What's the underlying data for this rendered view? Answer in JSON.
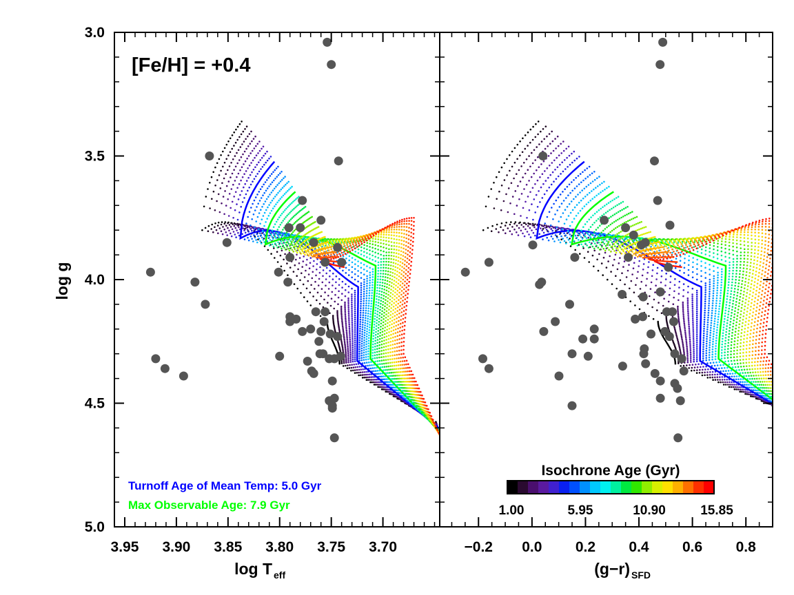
{
  "chart_data": {
    "type": "scatter",
    "title": "",
    "annotation": "[Fe/H] = +0.4",
    "y_axis": {
      "label": "log g",
      "ylim": [
        3.0,
        5.0
      ],
      "inverted": true,
      "ticks": [
        3.0,
        3.5,
        4.0,
        4.5,
        5.0
      ],
      "tick_labels": [
        "3.0",
        "3.5",
        "4.0",
        "4.5",
        "5.0"
      ]
    },
    "left_panel": {
      "xlabel_main": "log T",
      "xlabel_sub": "eff",
      "xlim": [
        3.96,
        3.645
      ],
      "ticks": [
        3.95,
        3.9,
        3.85,
        3.8,
        3.75,
        3.7
      ],
      "tick_labels": [
        "3.95",
        "3.90",
        "3.85",
        "3.80",
        "3.75",
        "3.70"
      ],
      "stars": [
        [
          3.754,
          3.04
        ],
        [
          3.75,
          3.13
        ],
        [
          3.868,
          3.5
        ],
        [
          3.743,
          3.52
        ],
        [
          3.778,
          3.68
        ],
        [
          3.791,
          3.79
        ],
        [
          3.78,
          3.79
        ],
        [
          3.76,
          3.76
        ],
        [
          3.851,
          3.85
        ],
        [
          3.767,
          3.85
        ],
        [
          3.744,
          3.87
        ],
        [
          3.74,
          3.93
        ],
        [
          3.756,
          3.93
        ],
        [
          3.79,
          3.91
        ],
        [
          3.925,
          3.97
        ],
        [
          3.882,
          4.01
        ],
        [
          3.801,
          3.97
        ],
        [
          3.792,
          4.01
        ],
        [
          3.872,
          4.1
        ],
        [
          3.79,
          4.15
        ],
        [
          3.79,
          4.17
        ],
        [
          3.784,
          4.16
        ],
        [
          3.77,
          4.2
        ],
        [
          3.778,
          4.21
        ],
        [
          3.765,
          4.13
        ],
        [
          3.756,
          4.13
        ],
        [
          3.757,
          4.17
        ],
        [
          3.76,
          4.21
        ],
        [
          3.762,
          4.25
        ],
        [
          3.751,
          4.22
        ],
        [
          3.744,
          4.23
        ],
        [
          3.758,
          4.3
        ],
        [
          3.761,
          4.3
        ],
        [
          3.752,
          4.32
        ],
        [
          3.747,
          4.32
        ],
        [
          3.741,
          4.31
        ],
        [
          3.8,
          4.31
        ],
        [
          3.92,
          4.32
        ],
        [
          3.911,
          4.36
        ],
        [
          3.893,
          4.39
        ],
        [
          3.773,
          4.33
        ],
        [
          3.769,
          4.37
        ],
        [
          3.767,
          4.38
        ],
        [
          3.749,
          4.41
        ],
        [
          3.752,
          4.49
        ],
        [
          3.749,
          4.52
        ],
        [
          3.747,
          4.48
        ],
        [
          3.749,
          4.51
        ],
        [
          3.747,
          4.64
        ]
      ]
    },
    "right_panel": {
      "xlabel_main": "(g−r)",
      "xlabel_sub": "SFD",
      "xlim": [
        -0.345,
        0.9
      ],
      "ticks": [
        -0.2,
        0.0,
        0.2,
        0.4,
        0.6,
        0.8
      ],
      "tick_labels": [
        "−0.2",
        "0.0",
        "0.2",
        "0.4",
        "0.6",
        "0.8"
      ],
      "stars": [
        [
          0.489,
          3.04
        ],
        [
          0.479,
          3.13
        ],
        [
          0.041,
          3.5
        ],
        [
          0.458,
          3.52
        ],
        [
          0.47,
          3.68
        ],
        [
          0.27,
          3.76
        ],
        [
          0.35,
          3.79
        ],
        [
          0.516,
          3.78
        ],
        [
          0.38,
          3.82
        ],
        [
          0.003,
          3.86
        ],
        [
          0.409,
          3.86
        ],
        [
          0.424,
          3.85
        ],
        [
          0.16,
          3.91
        ],
        [
          0.36,
          3.91
        ],
        [
          -0.249,
          3.97
        ],
        [
          -0.161,
          3.93
        ],
        [
          0.036,
          4.01
        ],
        [
          0.028,
          4.02
        ],
        [
          0.51,
          3.95
        ],
        [
          0.337,
          4.06
        ],
        [
          0.141,
          4.1
        ],
        [
          0.416,
          4.07
        ],
        [
          0.48,
          4.05
        ],
        [
          0.386,
          4.16
        ],
        [
          0.414,
          4.15
        ],
        [
          0.504,
          4.13
        ],
        [
          0.525,
          4.13
        ],
        [
          0.53,
          4.17
        ],
        [
          0.087,
          4.17
        ],
        [
          0.044,
          4.21
        ],
        [
          0.233,
          4.2
        ],
        [
          0.233,
          4.24
        ],
        [
          0.19,
          4.24
        ],
        [
          0.497,
          4.21
        ],
        [
          0.514,
          4.23
        ],
        [
          0.445,
          4.22
        ],
        [
          0.42,
          4.28
        ],
        [
          0.418,
          4.3
        ],
        [
          0.15,
          4.3
        ],
        [
          0.21,
          4.31
        ],
        [
          0.534,
          4.3
        ],
        [
          0.56,
          4.32
        ],
        [
          -0.184,
          4.32
        ],
        [
          -0.161,
          4.36
        ],
        [
          0.339,
          4.35
        ],
        [
          0.425,
          4.34
        ],
        [
          0.568,
          4.37
        ],
        [
          0.101,
          4.39
        ],
        [
          0.46,
          4.38
        ],
        [
          0.48,
          4.41
        ],
        [
          0.534,
          4.42
        ],
        [
          0.544,
          4.44
        ],
        [
          0.48,
          4.48
        ],
        [
          0.555,
          4.49
        ],
        [
          0.15,
          4.51
        ],
        [
          0.546,
          4.64
        ]
      ]
    },
    "isochrones": {
      "age_min_gyr": 1.0,
      "age_step_gyr": 0.5,
      "count": 30,
      "turnoff_mean_age_gyr": 5.0,
      "max_observable_age_gyr": 7.9
    },
    "colorbar": {
      "title": "Isochrone Age (Gyr)",
      "tick_labels": [
        "1.00",
        "5.95",
        "10.90",
        "15.85"
      ],
      "min": 1.0,
      "max": 15.85,
      "colors": [
        "#000000",
        "#2a0a30",
        "#4a0f6e",
        "#5a1aa0",
        "#4020d0",
        "#0a20f0",
        "#0050ff",
        "#0090ff",
        "#00c8ff",
        "#00f0f0",
        "#00f0a0",
        "#00e840",
        "#30e800",
        "#90ee00",
        "#d8f000",
        "#ffe000",
        "#ffb000",
        "#ff7000",
        "#ff3000",
        "#ff0000"
      ]
    },
    "legend_text": {
      "turnoff": "Turnoff Age of Mean Temp: 5.0 Gyr",
      "max_age": "Max Observable Age: 7.9 Gyr"
    },
    "colors": {
      "turnoff": "#0000ff",
      "max_age": "#00ff00",
      "star": "#555555"
    }
  }
}
